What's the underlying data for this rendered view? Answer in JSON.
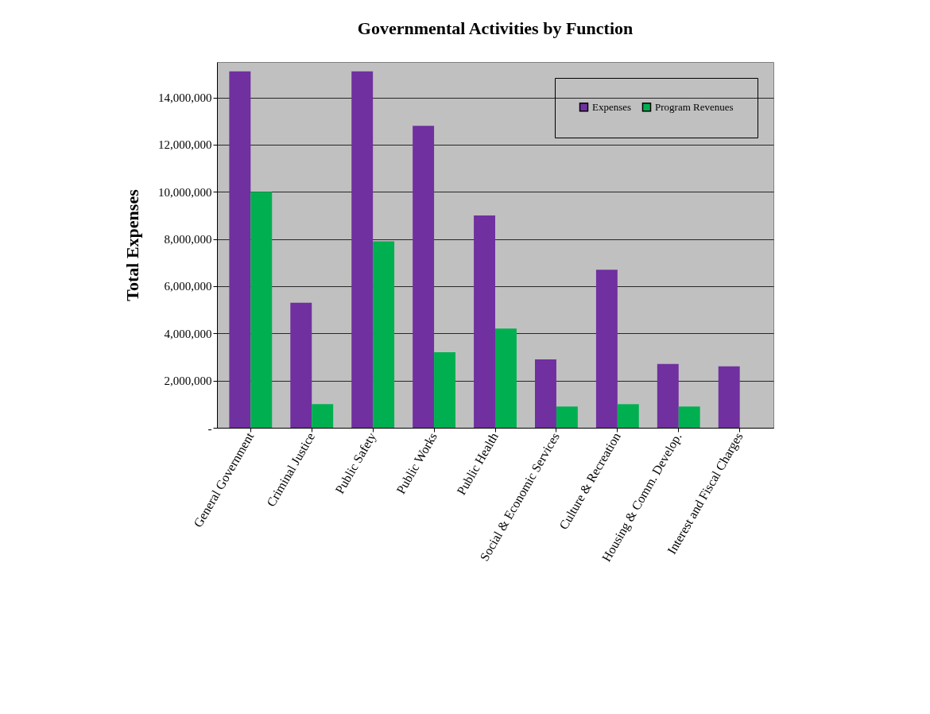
{
  "chart_data": {
    "type": "bar",
    "title": "Governmental Activities by Function",
    "ylabel": "Total Expenses",
    "categories": [
      "General Government",
      "Criminal Justice",
      "Public Safety",
      "Public Works",
      "Public Health",
      "Social & Economic Services",
      "Culture & Recreation",
      "Housing & Comm. Develop.",
      "Interest and Fiscal Charges"
    ],
    "series": [
      {
        "name": "Expenses",
        "color": "#7030a0",
        "values": [
          15100000,
          5300000,
          15100000,
          12800000,
          9000000,
          2900000,
          6700000,
          2700000,
          2600000
        ]
      },
      {
        "name": "Program Revenues",
        "color": "#00b050",
        "values": [
          10000000,
          1000000,
          7900000,
          3200000,
          4200000,
          900000,
          1000000,
          900000,
          0
        ]
      }
    ],
    "ylim": [
      0,
      15500000
    ],
    "yticks": [
      {
        "value": 0,
        "label": "-"
      },
      {
        "value": 2000000,
        "label": "2,000,000"
      },
      {
        "value": 4000000,
        "label": "4,000,000"
      },
      {
        "value": 6000000,
        "label": "6,000,000"
      },
      {
        "value": 8000000,
        "label": "8,000,000"
      },
      {
        "value": 10000000,
        "label": "10,000,000"
      },
      {
        "value": 12000000,
        "label": "12,000,000"
      },
      {
        "value": 14000000,
        "label": "14,000,000"
      }
    ],
    "grid": "y",
    "legend": "top right"
  }
}
